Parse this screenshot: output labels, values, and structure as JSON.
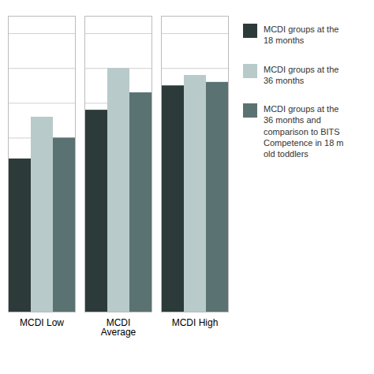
{
  "chart_data": {
    "type": "bar",
    "categories": [
      "MCDI Low",
      "MCDI\nAverage",
      "MCDI High"
    ],
    "series": [
      {
        "name": "MCDI groups at the\n18 months",
        "color": "#2d3a3a",
        "values": [
          0.44,
          0.58,
          0.65
        ]
      },
      {
        "name": "MCDI groups at the\n36 months",
        "color": "#b8caca",
        "values": [
          0.56,
          0.7,
          0.68
        ]
      },
      {
        "name": "MCDI groups at the\n36 months and\ncomparison to BITS\nCompetence in 18 m\nold toddlers",
        "color": "#5a7272",
        "values": [
          0.5,
          0.63,
          0.66
        ]
      }
    ],
    "ylim": [
      0,
      0.85
    ],
    "yticks": [
      0.0,
      0.1,
      0.2,
      0.3,
      0.4,
      0.5,
      0.6,
      0.7,
      0.8
    ],
    "grid": true,
    "tick_labels": "x",
    "legend": "right"
  }
}
